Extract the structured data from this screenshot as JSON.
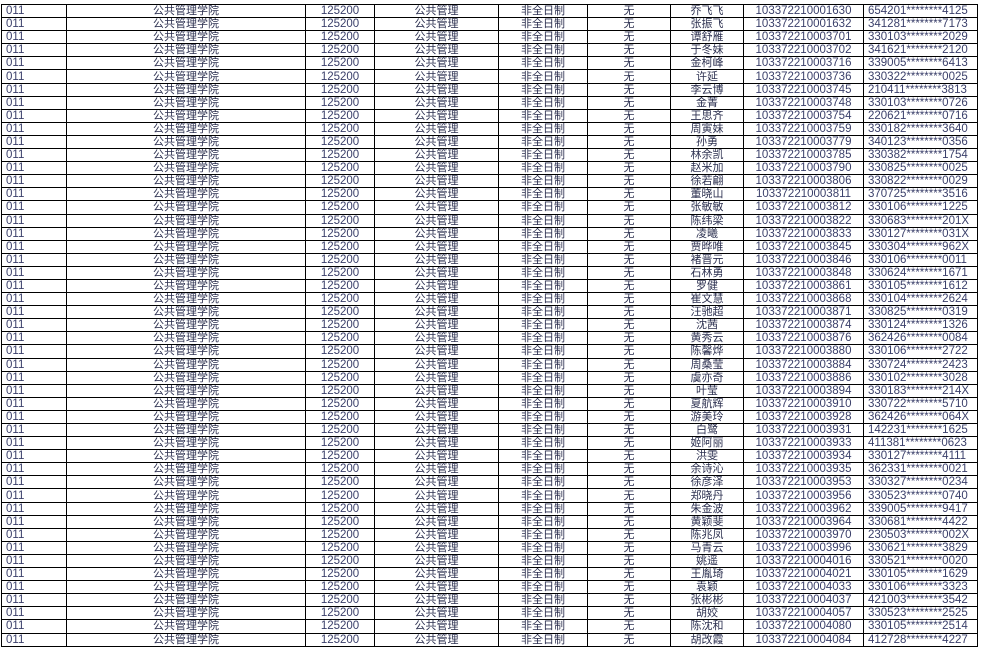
{
  "table": {
    "common": {
      "code": "011",
      "college": "公共管理学院",
      "major_code": "125200",
      "major": "公共管理",
      "study_mode": "非全日制",
      "direction": "无"
    },
    "rows": [
      {
        "name": "乔飞飞",
        "exam_no": "103372210001630",
        "id": "654201********4125"
      },
      {
        "name": "张振飞",
        "exam_no": "103372210001632",
        "id": "341281********7173"
      },
      {
        "name": "谭舒雁",
        "exam_no": "103372210003701",
        "id": "330103********2029"
      },
      {
        "name": "于冬妹",
        "exam_no": "103372210003702",
        "id": "341621********2120"
      },
      {
        "name": "金柯峰",
        "exam_no": "103372210003716",
        "id": "339005********6413"
      },
      {
        "name": "许延",
        "exam_no": "103372210003736",
        "id": "330322********0025"
      },
      {
        "name": "李云博",
        "exam_no": "103372210003745",
        "id": "210411********3813"
      },
      {
        "name": "金菁",
        "exam_no": "103372210003748",
        "id": "330103********0726"
      },
      {
        "name": "王思齐",
        "exam_no": "103372210003754",
        "id": "220621********0716"
      },
      {
        "name": "周寅妹",
        "exam_no": "103372210003759",
        "id": "330182********3640"
      },
      {
        "name": "孙勇",
        "exam_no": "103372210003779",
        "id": "340123********0356"
      },
      {
        "name": "林余凯",
        "exam_no": "103372210003785",
        "id": "330382********1754"
      },
      {
        "name": "赵米加",
        "exam_no": "103372210003790",
        "id": "330825********0025"
      },
      {
        "name": "徐若翩",
        "exam_no": "103372210003806",
        "id": "330822********0029"
      },
      {
        "name": "董晓山",
        "exam_no": "103372210003811",
        "id": "370725********3516"
      },
      {
        "name": "张敏敏",
        "exam_no": "103372210003812",
        "id": "330106********1225"
      },
      {
        "name": "陈纬梁",
        "exam_no": "103372210003822",
        "id": "330683********201X"
      },
      {
        "name": "凌曦",
        "exam_no": "103372210003833",
        "id": "330127********031X"
      },
      {
        "name": "贾晔唯",
        "exam_no": "103372210003845",
        "id": "330304********962X"
      },
      {
        "name": "褚晋元",
        "exam_no": "103372210003846",
        "id": "330106********0011"
      },
      {
        "name": "石林勇",
        "exam_no": "103372210003848",
        "id": "330624********1671"
      },
      {
        "name": "罗健",
        "exam_no": "103372210003861",
        "id": "330105********1612"
      },
      {
        "name": "崔文慧",
        "exam_no": "103372210003868",
        "id": "330104********2624"
      },
      {
        "name": "汪驰超",
        "exam_no": "103372210003871",
        "id": "330825********0319"
      },
      {
        "name": "沈茜",
        "exam_no": "103372210003874",
        "id": "330124********1326"
      },
      {
        "name": "黄秀云",
        "exam_no": "103372210003876",
        "id": "362426********0084"
      },
      {
        "name": "陈馨烨",
        "exam_no": "103372210003880",
        "id": "330106********2722"
      },
      {
        "name": "周桑莹",
        "exam_no": "103372210003884",
        "id": "330724********2423"
      },
      {
        "name": "虞亦奇",
        "exam_no": "103372210003886",
        "id": "330102********3028"
      },
      {
        "name": "叶莹",
        "exam_no": "103372210003894",
        "id": "330183********214X"
      },
      {
        "name": "夏航辉",
        "exam_no": "103372210003910",
        "id": "330722********5710"
      },
      {
        "name": "游美玲",
        "exam_no": "103372210003928",
        "id": "362426********064X"
      },
      {
        "name": "白鹭",
        "exam_no": "103372210003931",
        "id": "142231********1625"
      },
      {
        "name": "姬阿丽",
        "exam_no": "103372210003933",
        "id": "411381********0623"
      },
      {
        "name": "洪雯",
        "exam_no": "103372210003934",
        "id": "330127********4111"
      },
      {
        "name": "余诗沁",
        "exam_no": "103372210003935",
        "id": "362331********0021"
      },
      {
        "name": "徐彦泽",
        "exam_no": "103372210003953",
        "id": "330327********0234"
      },
      {
        "name": "郑晓丹",
        "exam_no": "103372210003956",
        "id": "330523********0740"
      },
      {
        "name": "朱金波",
        "exam_no": "103372210003962",
        "id": "339005********9417"
      },
      {
        "name": "黄颖斐",
        "exam_no": "103372210003964",
        "id": "330681********4422"
      },
      {
        "name": "陈兆凤",
        "exam_no": "103372210003970",
        "id": "230503********002X"
      },
      {
        "name": "马青云",
        "exam_no": "103372210003996",
        "id": "330621********3829"
      },
      {
        "name": "姚遥",
        "exam_no": "103372210004016",
        "id": "330521********0020"
      },
      {
        "name": "王胤琦",
        "exam_no": "103372210004021",
        "id": "330105********1629"
      },
      {
        "name": "袁颖",
        "exam_no": "103372210004033",
        "id": "330106********3323"
      },
      {
        "name": "张彬彬",
        "exam_no": "103372210004037",
        "id": "421003********3542"
      },
      {
        "name": "胡姣",
        "exam_no": "103372210004057",
        "id": "330523********2525"
      },
      {
        "name": "陈沈和",
        "exam_no": "103372210004080",
        "id": "330105********2514"
      },
      {
        "name": "胡改霞",
        "exam_no": "103372210004084",
        "id": "412728********4227"
      }
    ]
  }
}
